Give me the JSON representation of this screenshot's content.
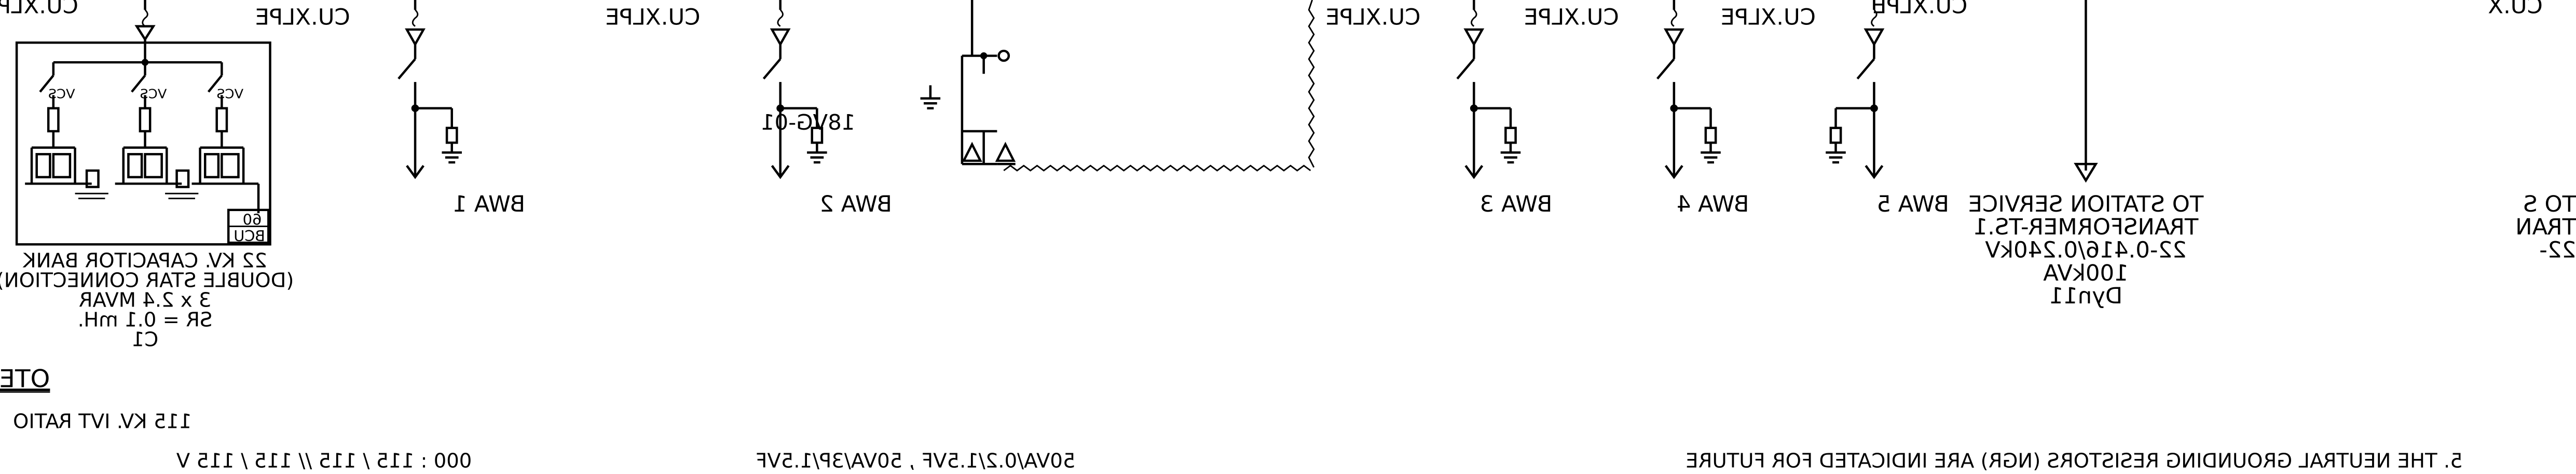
{
  "feeders": [
    {
      "label": "BWA 1",
      "cable": "CU.XLPE"
    },
    {
      "label": "BWA 2",
      "cable": "CU.XLPE"
    },
    {
      "label": "BWA 3",
      "cable": "CU.XLPE"
    },
    {
      "label": "BWA 4",
      "cable": "CU.XLPE"
    },
    {
      "label": "BWA 5",
      "cable": "CU.XLPE"
    }
  ],
  "surge_arrester_tag": "18VG-01",
  "capacitor_bank": {
    "cable": "CU.XLPE",
    "switch_label": "VCS",
    "relay_labels": [
      "60",
      "BCU"
    ],
    "title": "22 KV. CAPACITOR BANK",
    "lines": [
      "(DOUBLE STAR CONNECTION)",
      "3 x 2.4 MVAR",
      "SR = 0.1 mH.",
      "C1"
    ]
  },
  "station_service": {
    "cable": "CU.XLPE",
    "lines": [
      "TO STATION SERVICE",
      "TRANSFORMER-TS.1",
      "22-0.416/0.240kV",
      "100kVA",
      "Dyn11"
    ]
  },
  "partial_left": {
    "cable": "CU.X",
    "lines": [
      "TO S",
      "TRAN",
      "22-"
    ]
  },
  "notes": {
    "heading": "OTES",
    "ivt_ratio": "115 KV. IVT RATIO",
    "ratio_line": "000  :  115 / 115  //  115  /  115  V",
    "burden_line": "50VA/0.2/1.5VF , 50VA/3P/1.5VF",
    "note5": "5. THE NEUTRAL GROUNDING RESISTORS (NGR) ARE INDICATED FOR FUTURE"
  }
}
